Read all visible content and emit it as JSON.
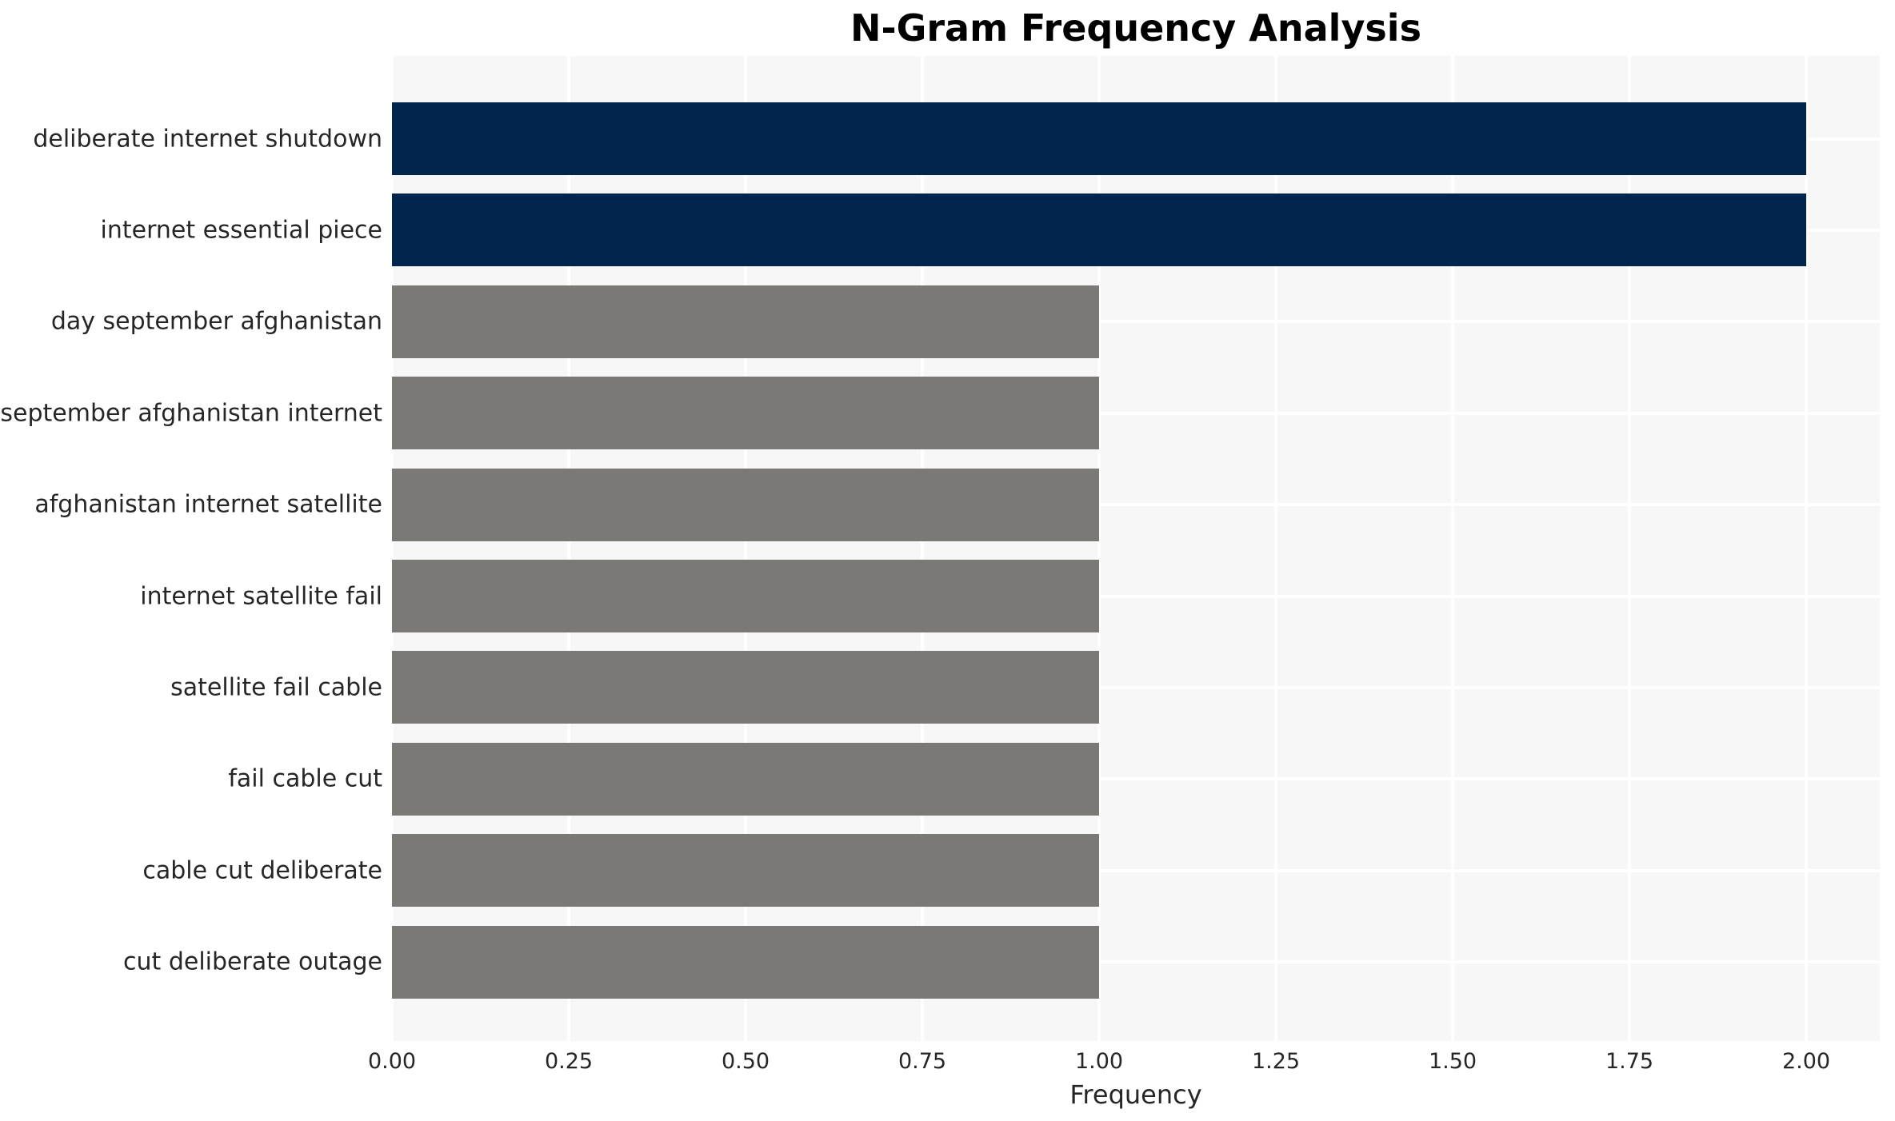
{
  "chart_data": {
    "type": "bar",
    "orientation": "horizontal",
    "title": "N-Gram Frequency Analysis",
    "xlabel": "Frequency",
    "ylabel": "",
    "categories": [
      "deliberate internet shutdown",
      "internet essential piece",
      "day september afghanistan",
      "september afghanistan internet",
      "afghanistan internet satellite",
      "internet satellite fail",
      "satellite fail cable",
      "fail cable cut",
      "cable cut deliberate",
      "cut deliberate outage"
    ],
    "values": [
      2,
      2,
      1,
      1,
      1,
      1,
      1,
      1,
      1,
      1
    ],
    "xlim": [
      0,
      2.1
    ],
    "xticks": [
      0,
      0.25,
      0.5,
      0.75,
      1.0,
      1.25,
      1.5,
      1.75,
      2.0
    ],
    "xtick_labels": [
      "0.00",
      "0.25",
      "0.50",
      "0.75",
      "1.00",
      "1.25",
      "1.50",
      "1.75",
      "2.00"
    ],
    "grid": true,
    "legend_position": "none",
    "colors": {
      "bar_highlight": "#02254d",
      "bar_muted": "#7b7975",
      "plot_background": "#f7f7f7",
      "gridline": "#ffffff",
      "tick_text": "#262626",
      "title_text": "#000000"
    }
  }
}
